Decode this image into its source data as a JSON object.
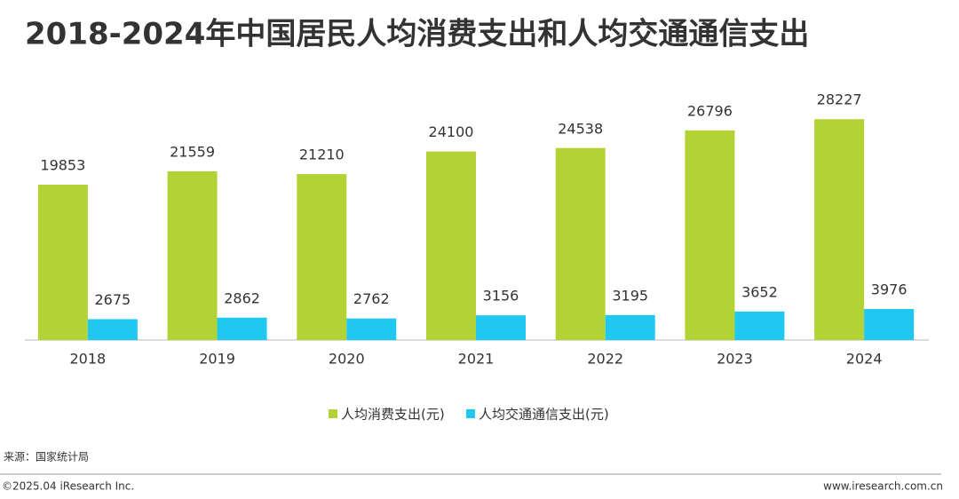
{
  "chart_data": {
    "type": "bar",
    "title": "2018-2024年中国居民人均消费支出和人均交通通信支出",
    "categories": [
      "2018",
      "2019",
      "2020",
      "2021",
      "2022",
      "2023",
      "2024"
    ],
    "series": [
      {
        "name": "人均消费支出(元)",
        "color": "#b2d235",
        "values": [
          19853,
          21559,
          21210,
          24100,
          24538,
          26796,
          28227
        ]
      },
      {
        "name": "人均交通通信支出(元)",
        "color": "#1ec8f0",
        "values": [
          2675,
          2862,
          2762,
          3156,
          3195,
          3652,
          3976
        ]
      }
    ],
    "ylim": [
      0,
      32000
    ],
    "grid": false,
    "legend": "bottom"
  },
  "footer": {
    "source": "来源：国家统计局",
    "copyright": "©2025.04 iResearch Inc.",
    "website": "www.iresearch.com.cn"
  }
}
